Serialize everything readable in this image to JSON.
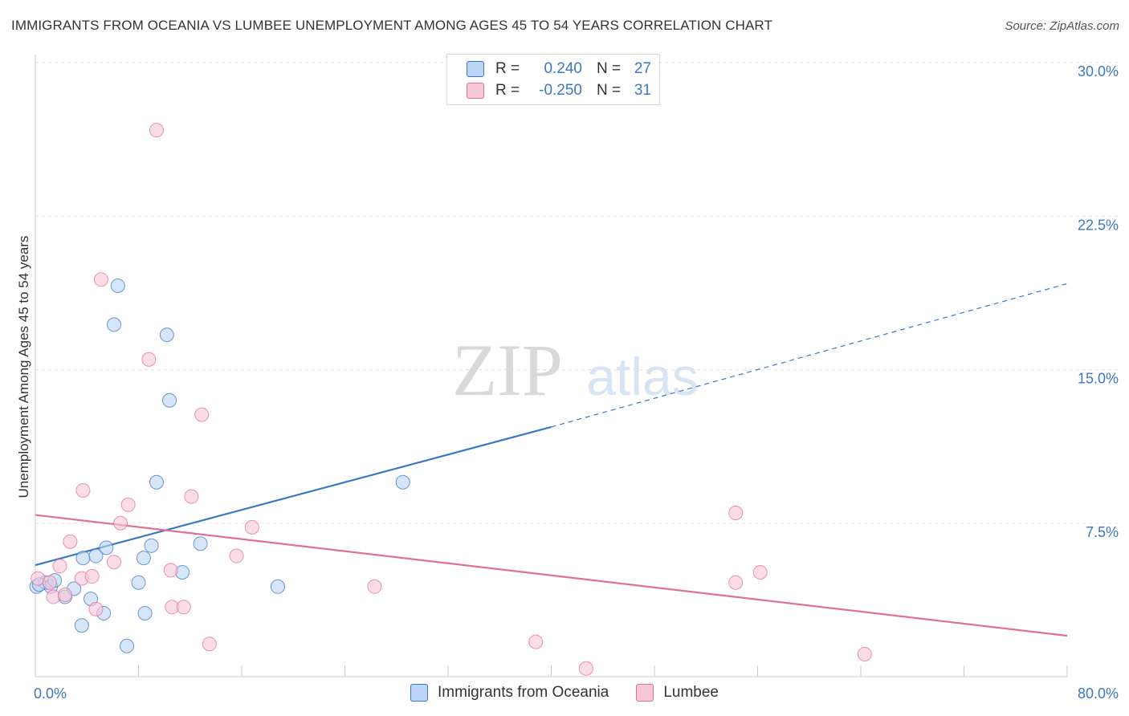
{
  "title": "IMMIGRANTS FROM OCEANIA VS LUMBEE UNEMPLOYMENT AMONG AGES 45 TO 54 YEARS CORRELATION CHART",
  "source": "Source: ZipAtlas.com",
  "watermark": {
    "zip": "ZIP",
    "atlas": "atlas"
  },
  "legend": {
    "rows": [
      {
        "r_label": "R =",
        "r_value": "0.240",
        "n_label": "N =",
        "n_value": "27"
      },
      {
        "r_label": "R =",
        "r_value": "-0.250",
        "n_label": "N =",
        "n_value": "31"
      }
    ]
  },
  "bottom_legend": {
    "series0": "Immigrants from Oceania",
    "series1": "Lumbee"
  },
  "chart_data": {
    "type": "scatter",
    "ylabel": "Unemployment Among Ages 45 to 54 years",
    "xlim": [
      0,
      80
    ],
    "ylim": [
      0,
      30
    ],
    "x_tick_labels": [
      "0.0%",
      "80.0%"
    ],
    "y_ticks": [
      7.5,
      15.0,
      22.5,
      30.0
    ],
    "y_tick_labels": [
      "7.5%",
      "15.0%",
      "22.5%",
      "30.0%"
    ],
    "grid": true,
    "colors": {
      "series0": "#3a78c9",
      "series0_fill": "#bcd4f5",
      "series1": "#e0709a",
      "series1_fill": "#f8c7d8"
    },
    "series": [
      {
        "name": "Immigrants from Oceania",
        "points": [
          [
            0.1,
            4.4
          ],
          [
            0.8,
            4.6
          ],
          [
            1.2,
            4.4
          ],
          [
            1.5,
            4.7
          ],
          [
            2.3,
            3.9
          ],
          [
            3.0,
            4.3
          ],
          [
            3.6,
            2.5
          ],
          [
            3.7,
            5.8
          ],
          [
            4.3,
            3.8
          ],
          [
            4.7,
            5.9
          ],
          [
            5.3,
            3.1
          ],
          [
            5.5,
            6.3
          ],
          [
            6.1,
            17.2
          ],
          [
            6.4,
            19.1
          ],
          [
            7.1,
            1.5
          ],
          [
            8.0,
            4.6
          ],
          [
            8.4,
            5.8
          ],
          [
            8.5,
            3.1
          ],
          [
            9.0,
            6.4
          ],
          [
            9.4,
            9.5
          ],
          [
            10.2,
            16.7
          ],
          [
            10.4,
            13.5
          ],
          [
            11.4,
            5.1
          ],
          [
            12.8,
            6.5
          ],
          [
            18.8,
            4.4
          ],
          [
            28.5,
            9.5
          ],
          [
            0.3,
            4.5
          ]
        ],
        "trend": {
          "x0": 0,
          "y0": 5.45,
          "x1": 40,
          "y1": 12.2,
          "dash_x1": 80,
          "dash_y1": 19.2
        }
      },
      {
        "name": "Lumbee",
        "points": [
          [
            0.2,
            4.8
          ],
          [
            1.1,
            4.6
          ],
          [
            1.4,
            3.9
          ],
          [
            1.9,
            5.4
          ],
          [
            2.3,
            4.0
          ],
          [
            2.7,
            6.6
          ],
          [
            3.6,
            4.8
          ],
          [
            3.7,
            9.1
          ],
          [
            4.4,
            4.9
          ],
          [
            4.7,
            3.3
          ],
          [
            5.1,
            19.4
          ],
          [
            6.1,
            5.6
          ],
          [
            6.6,
            7.5
          ],
          [
            7.2,
            8.4
          ],
          [
            8.8,
            15.5
          ],
          [
            9.4,
            26.7
          ],
          [
            10.5,
            5.2
          ],
          [
            10.6,
            3.4
          ],
          [
            11.5,
            3.4
          ],
          [
            12.1,
            8.8
          ],
          [
            12.9,
            12.8
          ],
          [
            13.5,
            1.6
          ],
          [
            15.6,
            5.9
          ],
          [
            16.8,
            7.3
          ],
          [
            26.3,
            4.4
          ],
          [
            38.8,
            1.7
          ],
          [
            42.7,
            0.4
          ],
          [
            54.3,
            4.6
          ],
          [
            54.3,
            8.0
          ],
          [
            56.2,
            5.1
          ],
          [
            64.3,
            1.1
          ]
        ],
        "trend": {
          "x0": 0,
          "y0": 7.9,
          "x1": 80,
          "y1": 2.0
        }
      }
    ]
  }
}
